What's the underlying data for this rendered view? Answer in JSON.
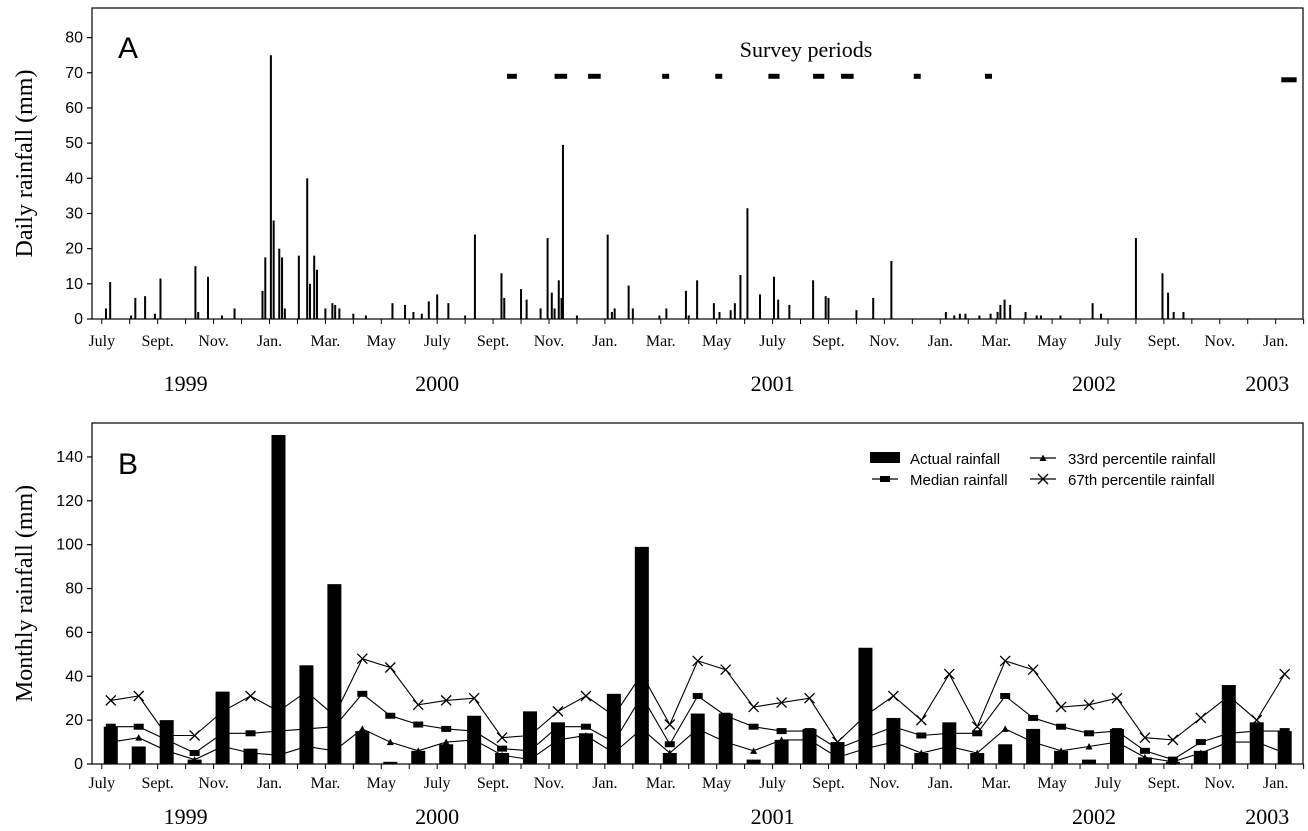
{
  "chart_data": [
    {
      "type": "bar",
      "panel_label": "A",
      "ylabel": "Daily rainfall (mm)",
      "ylim": [
        0,
        85
      ],
      "yticks": [
        0,
        10,
        20,
        30,
        40,
        50,
        60,
        70,
        80
      ],
      "grid": false,
      "x_month_range": [
        0,
        43
      ],
      "month_tick_labels": [
        {
          "m": 0,
          "label": "July"
        },
        {
          "m": 2,
          "label": "Sept."
        },
        {
          "m": 4,
          "label": "Nov."
        },
        {
          "m": 6,
          "label": "Jan."
        },
        {
          "m": 8,
          "label": "Mar."
        },
        {
          "m": 10,
          "label": "May"
        },
        {
          "m": 12,
          "label": "July"
        },
        {
          "m": 14,
          "label": "Sept."
        },
        {
          "m": 16,
          "label": "Nov."
        },
        {
          "m": 18,
          "label": "Jan."
        },
        {
          "m": 20,
          "label": "Mar."
        },
        {
          "m": 22,
          "label": "May"
        },
        {
          "m": 24,
          "label": "July"
        },
        {
          "m": 26,
          "label": "Sept."
        },
        {
          "m": 28,
          "label": "Nov."
        },
        {
          "m": 30,
          "label": "Jan."
        },
        {
          "m": 32,
          "label": "Mar."
        },
        {
          "m": 34,
          "label": "May"
        },
        {
          "m": 36,
          "label": "July"
        },
        {
          "m": 38,
          "label": "Sept."
        },
        {
          "m": 40,
          "label": "Nov."
        },
        {
          "m": 42,
          "label": "Jan."
        }
      ],
      "year_labels": [
        {
          "m": 3,
          "label": "1999"
        },
        {
          "m": 12,
          "label": "2000"
        },
        {
          "m": 24,
          "label": "2001"
        },
        {
          "m": 35.5,
          "label": "2002"
        },
        {
          "m": 41.7,
          "label": "2003"
        }
      ],
      "survey_label": "Survey periods",
      "survey_periods": [
        {
          "start": 14.5,
          "end": 14.85,
          "y": 69
        },
        {
          "start": 16.2,
          "end": 16.65,
          "y": 69
        },
        {
          "start": 17.4,
          "end": 17.85,
          "y": 69
        },
        {
          "start": 20.05,
          "end": 20.3,
          "y": 69
        },
        {
          "start": 21.95,
          "end": 22.2,
          "y": 69
        },
        {
          "start": 23.85,
          "end": 24.25,
          "y": 69
        },
        {
          "start": 25.45,
          "end": 25.85,
          "y": 69
        },
        {
          "start": 26.45,
          "end": 26.9,
          "y": 69
        },
        {
          "start": 29.05,
          "end": 29.3,
          "y": 69
        },
        {
          "start": 31.6,
          "end": 31.85,
          "y": 69
        },
        {
          "start": 42.2,
          "end": 42.75,
          "y": 68
        }
      ],
      "daily_bars": [
        [
          0.15,
          3
        ],
        [
          0.3,
          10.5
        ],
        [
          1.05,
          1
        ],
        [
          1.2,
          6
        ],
        [
          1.55,
          6.5
        ],
        [
          1.9,
          1.5
        ],
        [
          2.1,
          11.5
        ],
        [
          3.35,
          15
        ],
        [
          3.45,
          2
        ],
        [
          3.8,
          12
        ],
        [
          4.3,
          1
        ],
        [
          4.75,
          3
        ],
        [
          5.75,
          8
        ],
        [
          5.85,
          17.5
        ],
        [
          6.05,
          75
        ],
        [
          6.15,
          28
        ],
        [
          6.35,
          20
        ],
        [
          6.45,
          17.5
        ],
        [
          6.55,
          3
        ],
        [
          7.05,
          18
        ],
        [
          7.35,
          40
        ],
        [
          7.45,
          10
        ],
        [
          7.6,
          18
        ],
        [
          7.7,
          14
        ],
        [
          8.0,
          3
        ],
        [
          8.25,
          4.5
        ],
        [
          8.35,
          4
        ],
        [
          8.5,
          3
        ],
        [
          9.0,
          1.5
        ],
        [
          9.45,
          1
        ],
        [
          10.4,
          4.5
        ],
        [
          10.85,
          4
        ],
        [
          11.15,
          2
        ],
        [
          11.45,
          1.5
        ],
        [
          11.7,
          5
        ],
        [
          12.0,
          7
        ],
        [
          12.4,
          4.5
        ],
        [
          13.0,
          1
        ],
        [
          13.35,
          24
        ],
        [
          14.3,
          13
        ],
        [
          14.4,
          6
        ],
        [
          15.0,
          8.5
        ],
        [
          15.2,
          5.5
        ],
        [
          15.7,
          3
        ],
        [
          15.95,
          23
        ],
        [
          16.1,
          7.5
        ],
        [
          16.2,
          3
        ],
        [
          16.35,
          11
        ],
        [
          16.45,
          6
        ],
        [
          16.5,
          49.5
        ],
        [
          17.0,
          1
        ],
        [
          18.1,
          24
        ],
        [
          18.25,
          2
        ],
        [
          18.35,
          3
        ],
        [
          18.85,
          9.5
        ],
        [
          19.0,
          3
        ],
        [
          19.95,
          1
        ],
        [
          20.2,
          3
        ],
        [
          20.9,
          8
        ],
        [
          21.0,
          1
        ],
        [
          21.3,
          11
        ],
        [
          21.9,
          4.5
        ],
        [
          22.1,
          2
        ],
        [
          22.5,
          2.5
        ],
        [
          22.65,
          4.5
        ],
        [
          22.85,
          12.5
        ],
        [
          23.1,
          31.5
        ],
        [
          23.55,
          7
        ],
        [
          24.05,
          12
        ],
        [
          24.2,
          5.5
        ],
        [
          24.6,
          4
        ],
        [
          25.45,
          11
        ],
        [
          25.9,
          6.5
        ],
        [
          26.0,
          6
        ],
        [
          27.0,
          2.5
        ],
        [
          27.6,
          6
        ],
        [
          28.25,
          16.5
        ],
        [
          30.2,
          2
        ],
        [
          30.5,
          1
        ],
        [
          30.7,
          1.5
        ],
        [
          30.9,
          1.5
        ],
        [
          31.4,
          1
        ],
        [
          31.8,
          1.5
        ],
        [
          32.05,
          2
        ],
        [
          32.15,
          4
        ],
        [
          32.3,
          5.5
        ],
        [
          32.5,
          4
        ],
        [
          33.05,
          2
        ],
        [
          33.45,
          1
        ],
        [
          33.6,
          1
        ],
        [
          34.3,
          1
        ],
        [
          35.45,
          4.5
        ],
        [
          35.75,
          1.5
        ],
        [
          37.0,
          23
        ],
        [
          37.95,
          13
        ],
        [
          38.15,
          7.5
        ],
        [
          38.35,
          2
        ],
        [
          38.7,
          2
        ]
      ]
    },
    {
      "type": "bar",
      "panel_label": "B",
      "ylabel": "Monthly rainfall (mm)",
      "ylim": [
        0,
        150
      ],
      "yticks": [
        0,
        20,
        40,
        60,
        80,
        100,
        120,
        140
      ],
      "grid": false,
      "legend_position": "top-right",
      "x_month_range": [
        0,
        43
      ],
      "month_tick_labels": [
        {
          "m": 0,
          "label": "July"
        },
        {
          "m": 2,
          "label": "Sept."
        },
        {
          "m": 4,
          "label": "Nov."
        },
        {
          "m": 6,
          "label": "Jan."
        },
        {
          "m": 8,
          "label": "Mar."
        },
        {
          "m": 10,
          "label": "May"
        },
        {
          "m": 12,
          "label": "July"
        },
        {
          "m": 14,
          "label": "Sept."
        },
        {
          "m": 16,
          "label": "Nov."
        },
        {
          "m": 18,
          "label": "Jan."
        },
        {
          "m": 20,
          "label": "Mar."
        },
        {
          "m": 22,
          "label": "May"
        },
        {
          "m": 24,
          "label": "July"
        },
        {
          "m": 26,
          "label": "Sept."
        },
        {
          "m": 28,
          "label": "Nov."
        },
        {
          "m": 30,
          "label": "Jan."
        },
        {
          "m": 32,
          "label": "Mar."
        },
        {
          "m": 34,
          "label": "May"
        },
        {
          "m": 36,
          "label": "July"
        },
        {
          "m": 38,
          "label": "Sept."
        },
        {
          "m": 40,
          "label": "Nov."
        },
        {
          "m": 42,
          "label": "Jan."
        }
      ],
      "year_labels": [
        {
          "m": 3,
          "label": "1999"
        },
        {
          "m": 12,
          "label": "2000"
        },
        {
          "m": 24,
          "label": "2001"
        },
        {
          "m": 35.5,
          "label": "2002"
        },
        {
          "m": 41.7,
          "label": "2003"
        }
      ],
      "series": [
        {
          "name": "Actual rainfall",
          "style": "bar",
          "values": [
            17,
            8,
            20,
            2,
            33,
            7,
            150,
            45,
            82,
            15,
            1,
            6,
            9,
            22,
            5,
            24,
            19,
            14,
            32,
            99,
            5,
            23,
            23,
            2,
            11,
            16,
            10,
            53,
            21,
            5,
            19,
            5,
            9,
            16,
            6,
            2,
            16,
            3,
            1,
            6,
            36,
            19,
            15
          ]
        },
        {
          "name": "Median rainfall",
          "style": "line-square",
          "values": [
            17,
            17,
            11,
            5,
            14,
            14,
            15,
            16,
            17,
            32,
            22,
            18,
            16,
            15,
            7,
            6,
            17,
            17,
            10,
            31,
            9,
            31,
            22,
            17,
            15,
            15,
            7,
            12,
            17,
            13,
            14,
            14,
            31,
            21,
            17,
            14,
            15,
            6,
            2,
            10,
            14,
            15,
            15
          ]
        },
        {
          "name": "33rd percentile rainfall",
          "style": "line-triangle",
          "values": [
            10,
            12,
            6,
            2,
            8,
            5,
            4,
            8,
            6,
            16,
            10,
            6,
            10,
            11,
            4,
            2,
            11,
            13,
            5,
            16,
            5,
            16,
            10,
            6,
            11,
            11,
            3,
            7,
            10,
            5,
            8,
            5,
            16,
            10,
            6,
            8,
            10,
            3,
            1,
            5,
            10,
            10,
            5
          ]
        },
        {
          "name": "67th percentile rainfall",
          "style": "line-x",
          "values": [
            29,
            31,
            13,
            13,
            24,
            31,
            24,
            33,
            22,
            48,
            44,
            27,
            29,
            30,
            12,
            13,
            24,
            31,
            22,
            41,
            18,
            47,
            43,
            26,
            28,
            30,
            10,
            22,
            31,
            20,
            41,
            17,
            47,
            43,
            26,
            27,
            30,
            12,
            11,
            21,
            31,
            20,
            41
          ]
        }
      ]
    }
  ]
}
